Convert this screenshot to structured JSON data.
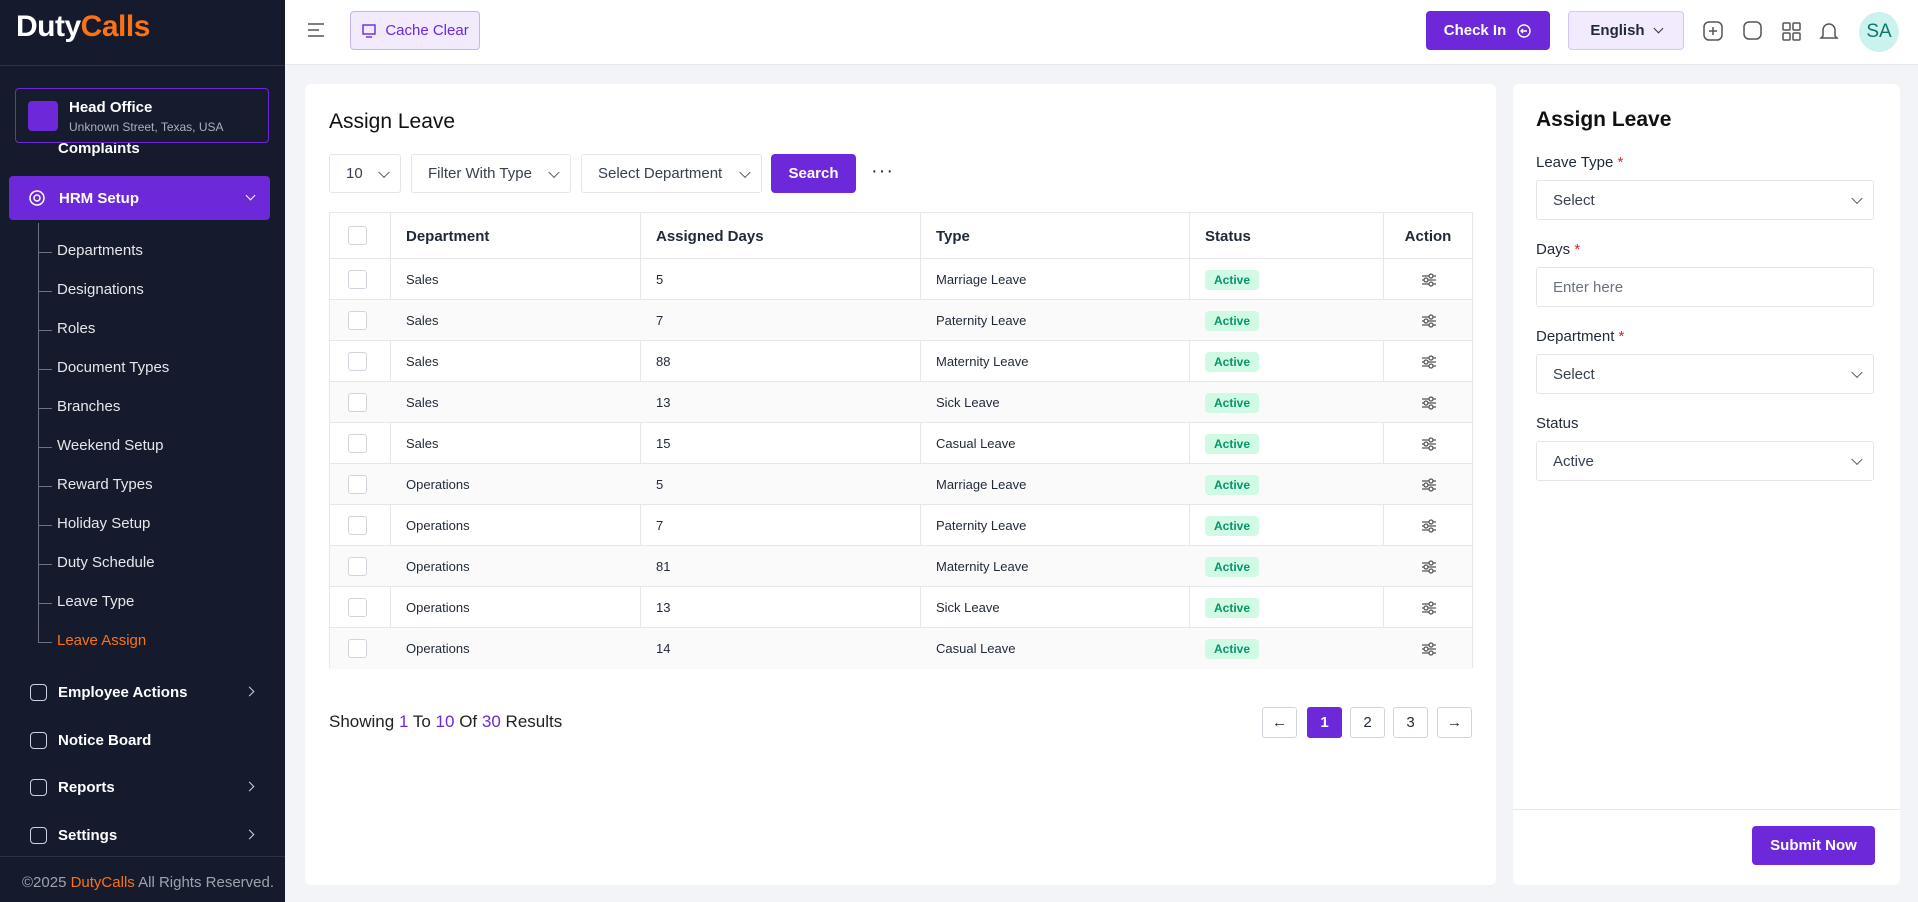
{
  "brand": {
    "part1": "Duty",
    "part2": "Calls"
  },
  "branch": {
    "name": "Head Office",
    "address": "Unknown Street, Texas, USA"
  },
  "sidebar": {
    "partial_item": "Complaints",
    "active_group": "HRM Setup",
    "submenu": [
      "Departments",
      "Designations",
      "Roles",
      "Document Types",
      "Branches",
      "Weekend Setup",
      "Reward Types",
      "Holiday Setup",
      "Duty Schedule",
      "Leave Type",
      "Leave Assign"
    ],
    "active_index": 10,
    "menu": [
      {
        "label": "Employee Actions",
        "expandable": true
      },
      {
        "label": "Notice Board",
        "expandable": false
      },
      {
        "label": "Reports",
        "expandable": true
      },
      {
        "label": "Settings",
        "expandable": true
      }
    ]
  },
  "footer": {
    "copyright": "©2025",
    "brand": "DutyCalls",
    "rights": "All Rights Reserved."
  },
  "topbar": {
    "cache": "Cache Clear",
    "check_in": "Check In",
    "language": "English",
    "avatar": "SA"
  },
  "list": {
    "title": "Assign Leave",
    "per_page": "10",
    "type_filter": "Filter With Type",
    "department_filter": "Select Department",
    "search": "Search"
  },
  "table": {
    "headers": [
      "Department",
      "Assigned Days",
      "Type",
      "Status",
      "Action"
    ],
    "rows": [
      [
        "Sales",
        "5",
        "Marriage Leave",
        "Active"
      ],
      [
        "Sales",
        "7",
        "Paternity Leave",
        "Active"
      ],
      [
        "Sales",
        "88",
        "Maternity Leave",
        "Active"
      ],
      [
        "Sales",
        "13",
        "Sick Leave",
        "Active"
      ],
      [
        "Sales",
        "15",
        "Casual Leave",
        "Active"
      ],
      [
        "Operations",
        "5",
        "Marriage Leave",
        "Active"
      ],
      [
        "Operations",
        "7",
        "Paternity Leave",
        "Active"
      ],
      [
        "Operations",
        "81",
        "Maternity Leave",
        "Active"
      ],
      [
        "Operations",
        "13",
        "Sick Leave",
        "Active"
      ],
      [
        "Operations",
        "14",
        "Casual Leave",
        "Active"
      ]
    ]
  },
  "pagination": {
    "showing": "Showing",
    "from": "1",
    "to_word": "To",
    "to": "10",
    "of_word": "Of",
    "total": "30",
    "results": "Results",
    "pages": [
      "1",
      "2",
      "3"
    ],
    "current_index": 0
  },
  "form": {
    "title": "Assign Leave",
    "fields": [
      {
        "label": "Leave Type",
        "required": "*",
        "text": "Select",
        "control": "select"
      },
      {
        "label": "Days",
        "required": "*",
        "text": "Enter here",
        "control": "input"
      },
      {
        "label": "Department",
        "required": "*",
        "text": "Select",
        "control": "select"
      },
      {
        "label": "Status",
        "text": "Active",
        "control": "select"
      }
    ],
    "submit": "Submit Now"
  }
}
